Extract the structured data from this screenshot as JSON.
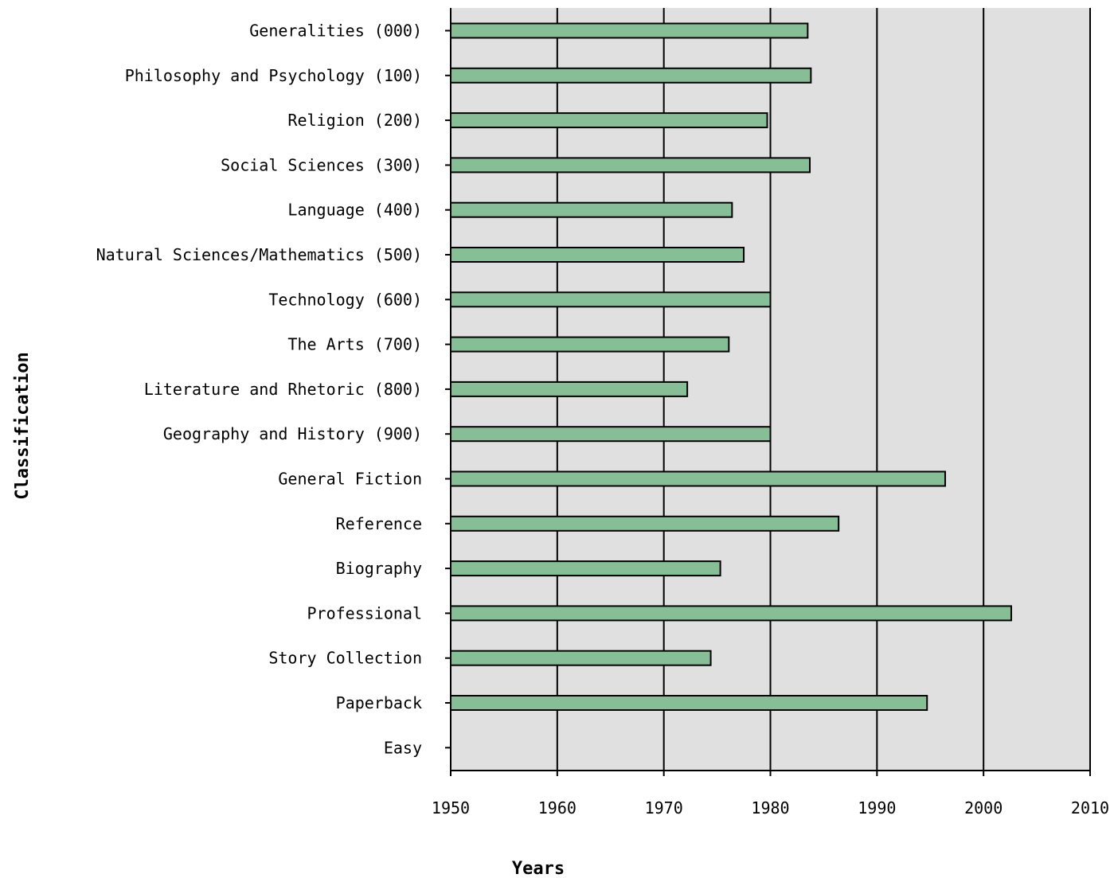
{
  "chart_data": {
    "type": "bar",
    "orientation": "horizontal",
    "categories": [
      "Generalities (000)",
      "Philosophy and Psychology (100)",
      "Religion (200)",
      "Social Sciences (300)",
      "Language (400)",
      "Natural Sciences/Mathematics (500)",
      "Technology (600)",
      "The Arts (700)",
      "Literature and Rhetoric (800)",
      "Geography and History (900)",
      "General Fiction",
      "Reference",
      "Biography",
      "Professional",
      "Story Collection",
      "Paperback",
      "Easy"
    ],
    "values": [
      1983.5,
      1983.8,
      1979.7,
      1983.7,
      1976.4,
      1977.5,
      1980.0,
      1976.1,
      1972.2,
      1980.0,
      1996.4,
      1986.4,
      1975.3,
      2002.6,
      1974.4,
      1994.7,
      null
    ],
    "xlabel": "Years",
    "ylabel": "Classification",
    "xlim": [
      1950,
      2010
    ],
    "xticks": [
      "1950",
      "1960",
      "1970",
      "1980",
      "1990",
      "2000",
      "2010"
    ],
    "grid": "vertical",
    "colors": {
      "bar": "#86bf96",
      "bar_stroke": "#000000",
      "plot_background": "#e0e0e0",
      "grid": "#000000"
    }
  }
}
